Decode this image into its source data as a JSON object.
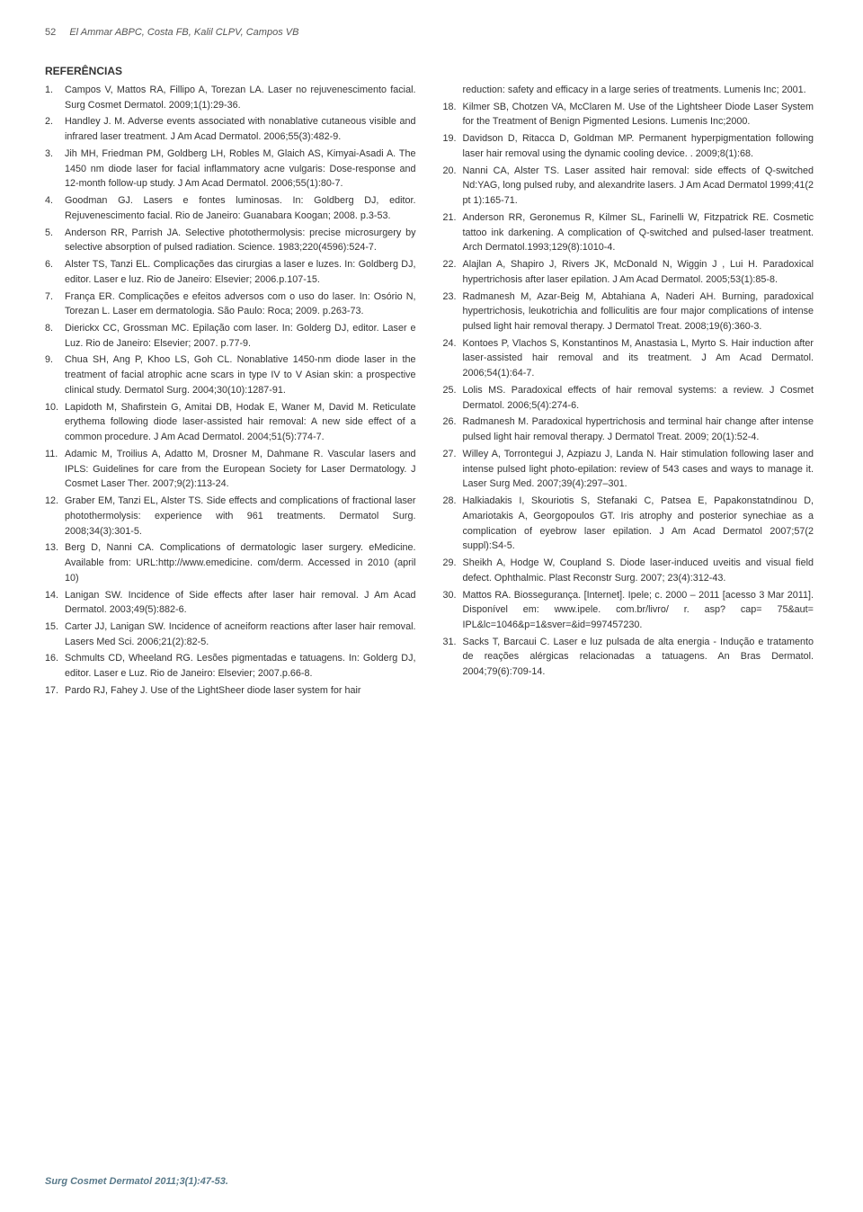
{
  "header": {
    "page": "52",
    "authors": "El Ammar ABPC, Costa FB, Kalil CLPV, Campos VB"
  },
  "section_title": "REFERÊNCIAS",
  "left_refs": [
    {
      "n": "1.",
      "t": "Campos V, Mattos RA, Fillipo A, Torezan LA. Laser no rejuvenescimento facial. Surg Cosmet Dermatol. 2009;1(1):29-36."
    },
    {
      "n": "2.",
      "t": "Handley J. M. Adverse events associated with nonablative cutaneous visible and infrared laser treatment. J Am Acad Dermatol. 2006;55(3):482-9."
    },
    {
      "n": "3.",
      "t": "Jih MH, Friedman PM, Goldberg LH, Robles M, Glaich AS, Kimyai-Asadi A. The 1450 nm diode laser for facial inflammatory acne vulgaris: Dose-response and 12-month follow-up study. J Am Acad Dermatol. 2006;55(1):80-7."
    },
    {
      "n": "4.",
      "t": "Goodman GJ. Lasers e fontes luminosas. In: Goldberg DJ, editor. Rejuvenescimento facial. Rio de Janeiro: Guanabara Koogan; 2008. p.3-53."
    },
    {
      "n": "5.",
      "t": "Anderson RR, Parrish JA. Selective photothermolysis: precise microsurgery by selective absorption of pulsed radiation. Science. 1983;220(4596):524-7."
    },
    {
      "n": "6.",
      "t": "Alster TS, Tanzi EL. Complicações das cirurgias a laser e luzes. In: Goldberg DJ, editor. Laser e luz. Rio de Janeiro: Elsevier; 2006.p.107-15."
    },
    {
      "n": "7.",
      "t": "França ER. Complicações e efeitos adversos com o uso do laser. In: Osório N, Torezan L. Laser em dermatologia. São Paulo: Roca; 2009. p.263-73."
    },
    {
      "n": "8.",
      "t": "Dierickx CC, Grossman MC. Epilação com laser. In: Golderg DJ, editor. Laser e Luz. Rio de Janeiro: Elsevier; 2007. p.77-9."
    },
    {
      "n": "9.",
      "t": "Chua SH, Ang P, Khoo LS, Goh CL. Nonablative 1450-nm diode laser in the treatment of facial atrophic acne scars in type IV to V Asian skin: a prospective clinical study. Dermatol Surg. 2004;30(10):1287-91."
    },
    {
      "n": "10.",
      "t": "Lapidoth M, Shafirstein G, Amitai DB, Hodak E, Waner M, David M. Reticulate erythema following diode laser-assisted hair removal: A new side effect of a common procedure. J Am Acad Dermatol. 2004;51(5):774-7."
    },
    {
      "n": "11.",
      "t": "Adamic M, Troilius A, Adatto M, Drosner M, Dahmane R. Vascular lasers and IPLS: Guidelines for care from the European Society for Laser Dermatology. J Cosmet Laser Ther. 2007;9(2):113-24."
    },
    {
      "n": "12.",
      "t": "Graber EM, Tanzi EL, Alster TS. Side effects and complications of fractional laser photothermolysis: experience with 961 treatments. Dermatol Surg. 2008;34(3):301-5."
    },
    {
      "n": "13.",
      "t": "Berg D, Nanni CA. Complications of dermatologic laser surgery. eMedicine. Available from: URL:http://www.emedicine. com/derm. Accessed in 2010 (april 10)"
    },
    {
      "n": "14.",
      "t": "Lanigan SW. Incidence of Side effects after laser hair removal. J Am Acad Dermatol. 2003;49(5):882-6."
    },
    {
      "n": "15.",
      "t": "Carter JJ, Lanigan SW. Incidence of acneiform reactions after laser hair removal. Lasers Med Sci. 2006;21(2):82-5."
    },
    {
      "n": "16.",
      "t": "Schmults CD, Wheeland RG. Lesões pigmentadas e tatuagens. In: Golderg DJ, editor. Laser e Luz. Rio de Janeiro: Elsevier; 2007.p.66-8."
    },
    {
      "n": "17.",
      "t": "Pardo RJ, Fahey J. Use of the LightSheer diode laser system for hair"
    }
  ],
  "right_refs": [
    {
      "n": "",
      "t": "reduction: safety and efficacy in a large series of treatments. Lumenis Inc; 2001."
    },
    {
      "n": "18.",
      "t": "Kilmer SB, Chotzen VA, McClaren M. Use of the Lightsheer Diode Laser System for the Treatment of Benign Pigmented Lesions. Lumenis Inc;2000."
    },
    {
      "n": "19.",
      "t": "Davidson D, Ritacca D, Goldman MP. Permanent hyperpigmentation following laser hair removal using the dynamic cooling device. . 2009;8(1):68."
    },
    {
      "n": "20.",
      "t": "Nanni CA, Alster TS. Laser assited hair removal: side effects of Q-switched Nd:YAG, long pulsed ruby, and alexandrite lasers. J Am Acad Dermatol 1999;41(2 pt 1):165-71."
    },
    {
      "n": "21.",
      "t": "Anderson RR, Geronemus R, Kilmer SL, Farinelli W, Fitzpatrick RE. Cosmetic tattoo ink darkening. A complication of Q-switched and pulsed-laser treatment. Arch Dermatol.1993;129(8):1010-4."
    },
    {
      "n": "22.",
      "t": "Alajlan A, Shapiro J, Rivers JK, McDonald N, Wiggin J , Lui H. Paradoxical hypertrichosis after laser epilation. J Am Acad Dermatol. 2005;53(1):85-8."
    },
    {
      "n": "23.",
      "t": "Radmanesh M, Azar-Beig M, Abtahiana A, Naderi AH. Burning, paradoxical hypertrichosis, leukotrichia and folliculitis are four major complications of intense pulsed light hair removal therapy. J Dermatol Treat. 2008;19(6):360-3."
    },
    {
      "n": "24.",
      "t": "Kontoes P, Vlachos S, Konstantinos M, Anastasia L, Myrto S. Hair induction after laser-assisted hair removal and its treatment. J Am Acad Dermatol. 2006;54(1):64-7."
    },
    {
      "n": "25.",
      "t": "Lolis MS. Paradoxical effects of hair removal systems: a review. J Cosmet Dermatol. 2006;5(4):274-6."
    },
    {
      "n": "26.",
      "t": "Radmanesh M. Paradoxical hypertrichosis and terminal hair change after intense pulsed light hair removal therapy. J Dermatol Treat. 2009; 20(1):52-4."
    },
    {
      "n": "27.",
      "t": "Willey A, Torrontegui J, Azpiazu J, Landa N. Hair stimulation following laser and intense pulsed light photo-epilation: review of 543 cases and ways to manage it. Laser Surg Med. 2007;39(4):297–301."
    },
    {
      "n": "28.",
      "t": "Halkiadakis I, Skouriotis S, Stefanaki C, Patsea E, Papakonstatndinou D, Amariotakis A, Georgopoulos GT. Iris atrophy and posterior synechiae as a complication of eyebrow laser epilation. J Am Acad Dermatol 2007;57(2 suppl):S4-5."
    },
    {
      "n": "29.",
      "t": "Sheikh A, Hodge W, Coupland S. Diode laser-induced uveitis and visual field defect. Ophthalmic. Plast Reconstr Surg. 2007; 23(4):312-43."
    },
    {
      "n": "30.",
      "t": "Mattos RA. Biossegurança. [Internet]. Ipele; c. 2000 – 2011 [acesso 3 Mar 2011]. Disponível em: www.ipele. com.br/livro/ r. asp? cap= 75&aut= IPL&lc=1046&p=1&sver=&id=997457230."
    },
    {
      "n": "31.",
      "t": "Sacks T, Barcaui C. Laser e luz pulsada de alta energia - Indução e tratamento de reações alérgicas relacionadas a tatuagens. An Bras Dermatol. 2004;79(6):709-14."
    }
  ],
  "footer": "Surg Cosmet Dermatol 2011;3(1):47-53."
}
